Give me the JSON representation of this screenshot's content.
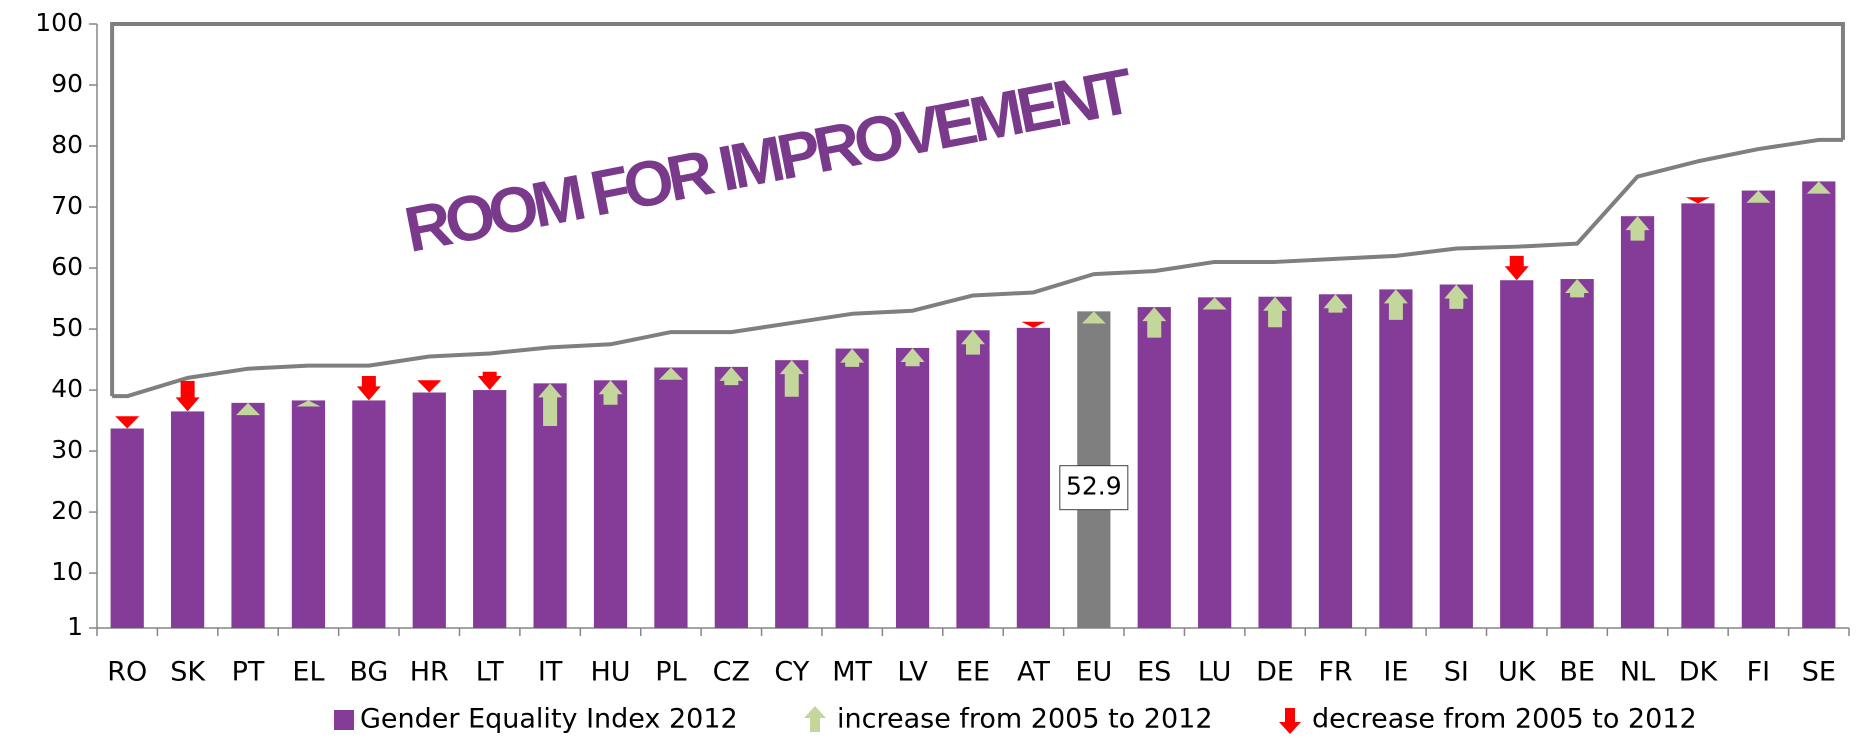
{
  "chart_data": {
    "type": "bar",
    "annotation": "ROOM FOR IMPROVEMENT",
    "categories": [
      "RO",
      "SK",
      "PT",
      "EL",
      "BG",
      "HR",
      "LT",
      "IT",
      "HU",
      "PL",
      "CZ",
      "CY",
      "MT",
      "LV",
      "EE",
      "AT",
      "EU",
      "ES",
      "LU",
      "DE",
      "FR",
      "IE",
      "SI",
      "UK",
      "BE",
      "NL",
      "DK",
      "FI",
      "SE"
    ],
    "series": [
      {
        "name": "Gender Equality Index 2012",
        "color": "#843c98",
        "values": [
          33.7,
          36.5,
          37.9,
          38.3,
          38.3,
          39.6,
          40.0,
          41.1,
          41.6,
          43.7,
          43.8,
          44.9,
          46.8,
          46.9,
          49.8,
          50.2,
          52.9,
          53.6,
          55.2,
          55.3,
          55.7,
          56.5,
          57.3,
          58.0,
          58.2,
          68.5,
          70.6,
          72.7,
          74.2
        ]
      },
      {
        "name": "increase from 2005 to 2012",
        "color": "#c3d69b"
      },
      {
        "name": "decrease from 2005 to 2012",
        "color": "#ff0000"
      }
    ],
    "change": [
      -2,
      -5,
      2,
      1,
      -4,
      -2,
      -3,
      7,
      4,
      2,
      3,
      6,
      3,
      3,
      4,
      -1,
      2,
      5,
      2,
      5,
      3,
      5,
      4,
      -4,
      3,
      4,
      -1,
      2,
      2
    ],
    "highlight_category": "EU",
    "highlight_color": "#7f7f7f",
    "labeled_category": "EU",
    "outline_values": [
      39,
      42,
      43.5,
      44,
      44,
      45.5,
      46,
      47,
      47.5,
      49.5,
      49.5,
      51,
      52.5,
      53,
      55.5,
      56,
      59,
      59.5,
      61,
      61,
      61.5,
      62,
      63.2,
      63.5,
      64,
      75,
      77.5,
      79.5,
      81
    ],
    "outline_color": "#7f7f7f",
    "ylim": [
      1,
      100
    ],
    "yticks": [
      1,
      10,
      20,
      30,
      40,
      50,
      60,
      70,
      80,
      90,
      100
    ]
  }
}
